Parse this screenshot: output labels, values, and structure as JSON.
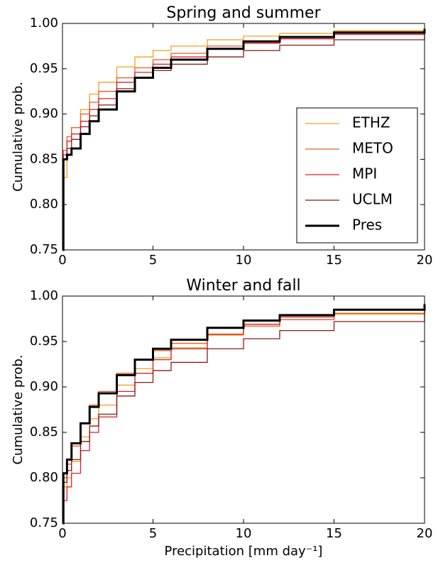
{
  "chart_data": [
    {
      "type": "line",
      "title": "Spring and summer",
      "ylabel": "Cumulative prob.",
      "x": [
        0,
        0.05,
        0.25,
        0.5,
        1,
        1.5,
        2,
        3,
        4,
        5,
        6,
        8,
        10,
        12,
        15,
        20
      ],
      "series": [
        {
          "name": "ETHZ",
          "color": "#f5a01e",
          "values": [
            0.75,
            0.83,
            0.87,
            0.885,
            0.905,
            0.922,
            0.935,
            0.952,
            0.963,
            0.97,
            0.975,
            0.982,
            0.986,
            0.989,
            0.992,
            0.995
          ]
        },
        {
          "name": "METO",
          "color": "#f05a28",
          "values": [
            0.75,
            0.86,
            0.875,
            0.885,
            0.9,
            0.913,
            0.925,
            0.94,
            0.951,
            0.96,
            0.967,
            0.975,
            0.981,
            0.985,
            0.989,
            0.993
          ]
        },
        {
          "name": "MPI",
          "color": "#d7222c",
          "values": [
            0.75,
            0.855,
            0.87,
            0.878,
            0.892,
            0.905,
            0.917,
            0.935,
            0.946,
            0.955,
            0.963,
            0.972,
            0.978,
            0.983,
            0.988,
            0.992
          ]
        },
        {
          "name": "UCLM",
          "color": "#8b1a1a",
          "values": [
            0.75,
            0.85,
            0.862,
            0.872,
            0.886,
            0.898,
            0.91,
            0.928,
            0.94,
            0.948,
            0.955,
            0.963,
            0.97,
            0.976,
            0.982,
            0.989
          ]
        },
        {
          "name": "Pres",
          "color": "#000000",
          "width": 3,
          "values": [
            0.75,
            0.85,
            0.855,
            0.862,
            0.878,
            0.892,
            0.905,
            0.925,
            0.94,
            0.951,
            0.96,
            0.972,
            0.98,
            0.985,
            0.99,
            0.994
          ]
        }
      ],
      "xlim": [
        0,
        20
      ],
      "xticks": [
        0,
        5,
        10,
        15,
        20
      ],
      "ylim": [
        0.75,
        1.0
      ],
      "yticks": [
        0.75,
        {
          "value": 0.8,
          "label": "0.80"
        },
        0.85,
        {
          "value": 0.9,
          "label": "0.90"
        },
        0.95,
        {
          "value": 1.0,
          "label": "1.00"
        }
      ],
      "legend": "lower right"
    },
    {
      "type": "line",
      "title": "Winter and fall",
      "ylabel": "Cumulative prob.",
      "xlabel": "Precipitation [mm day⁻¹]",
      "x": [
        0,
        0.05,
        0.25,
        0.5,
        1,
        1.5,
        2,
        3,
        4,
        5,
        6,
        8,
        10,
        12,
        15,
        20
      ],
      "series": [
        {
          "color": "#f5a01e",
          "values": [
            0.75,
            0.79,
            0.8,
            0.818,
            0.845,
            0.865,
            0.88,
            0.902,
            0.92,
            0.932,
            0.943,
            0.957,
            0.967,
            0.974,
            0.98,
            0.988
          ]
        },
        {
          "color": "#f05a28",
          "values": [
            0.75,
            0.8,
            0.815,
            0.835,
            0.86,
            0.88,
            0.895,
            0.915,
            0.93,
            0.94,
            0.948,
            0.958,
            0.967,
            0.974,
            0.981,
            0.988
          ]
        },
        {
          "color": "#d7222c",
          "values": [
            0.75,
            0.775,
            0.79,
            0.805,
            0.83,
            0.85,
            0.867,
            0.895,
            0.915,
            0.93,
            0.942,
            0.958,
            0.969,
            0.977,
            0.985,
            0.993
          ]
        },
        {
          "color": "#8b1a1a",
          "values": [
            0.75,
            0.795,
            0.808,
            0.82,
            0.84,
            0.857,
            0.87,
            0.89,
            0.905,
            0.918,
            0.927,
            0.942,
            0.953,
            0.962,
            0.972,
            0.985
          ]
        },
        {
          "color": "#000000",
          "width": 3,
          "values": [
            0.75,
            0.805,
            0.82,
            0.838,
            0.86,
            0.878,
            0.893,
            0.913,
            0.93,
            0.942,
            0.952,
            0.965,
            0.973,
            0.979,
            0.985,
            0.991
          ]
        }
      ],
      "xlim": [
        0,
        20
      ],
      "xticks": [
        0,
        5,
        10,
        15,
        20
      ],
      "ylim": [
        0.75,
        1.0
      ],
      "yticks": [
        0.75,
        {
          "value": 0.8,
          "label": "0.80"
        },
        0.85,
        {
          "value": 0.9,
          "label": "0.90"
        },
        0.95,
        {
          "value": 1.0,
          "label": "1.00"
        }
      ],
      "legend": false
    }
  ]
}
